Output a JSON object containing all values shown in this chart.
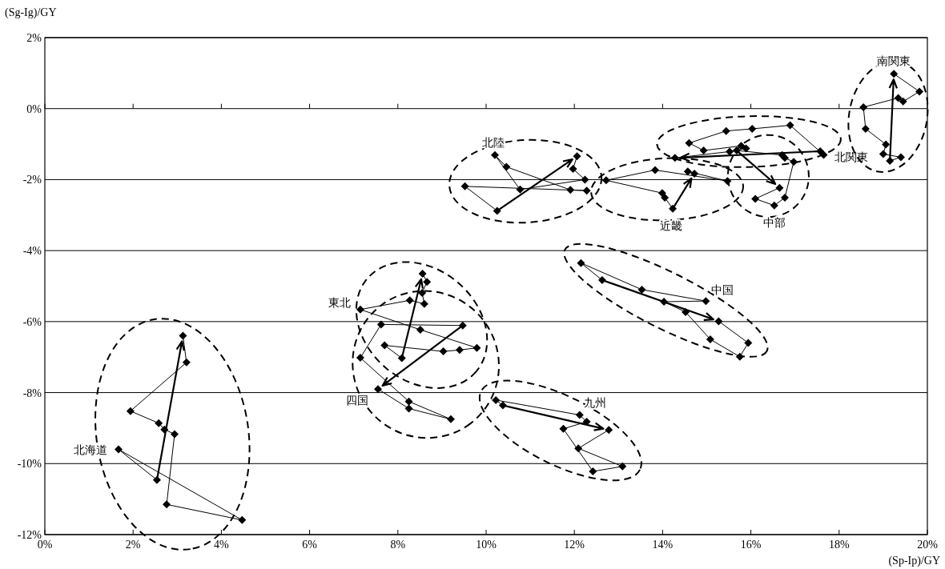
{
  "chart_data": {
    "type": "line",
    "xlabel": "(Sp-Ip)/GY",
    "ylabel": "(Sg-Ig)/GY",
    "xlim": [
      0,
      20
    ],
    "xticks": [
      {
        "value": 0,
        "label": "0%"
      },
      {
        "value": 2,
        "label": "2%"
      },
      {
        "value": 4,
        "label": "4%"
      },
      {
        "value": 6,
        "label": "6%"
      },
      {
        "value": 8,
        "label": "8%"
      },
      {
        "value": 10,
        "label": "10%"
      },
      {
        "value": 12,
        "label": "12%"
      },
      {
        "value": 14,
        "label": "14%"
      },
      {
        "value": 16,
        "label": "16%"
      },
      {
        "value": 18,
        "label": "18%"
      },
      {
        "value": 20,
        "label": "20%"
      }
    ],
    "ylim": [
      -12,
      2
    ],
    "yticks": [
      {
        "value": -12,
        "label": "-12%"
      },
      {
        "value": -10,
        "label": "-10%"
      },
      {
        "value": -8,
        "label": "-8%"
      },
      {
        "value": -6,
        "label": "-6%"
      },
      {
        "value": -4,
        "label": "-4%"
      },
      {
        "value": -2,
        "label": "-2%"
      },
      {
        "value": 0,
        "label": "0%"
      },
      {
        "value": 2,
        "label": "2%"
      }
    ],
    "grid": "y",
    "marker": "diamond",
    "line_style": "solid",
    "series": [
      {
        "name": "北海道",
        "color": "#000000",
        "x": [
          2.54,
          1.67,
          4.47,
          2.76,
          2.94,
          2.71,
          2.58,
          1.94,
          3.21,
          3.13
        ],
        "values": [
          -10.46,
          -9.6,
          -11.59,
          -11.15,
          -9.17,
          -9.04,
          -8.86,
          -8.52,
          -7.15,
          -6.4
        ]
      },
      {
        "name": "東北",
        "color": "#000000",
        "x": [
          8.09,
          7.7,
          9.03,
          9.4,
          9.79,
          8.51,
          7.15,
          8.27,
          8.6,
          8.55,
          8.66,
          8.56
        ],
        "values": [
          -7.03,
          -6.67,
          -6.84,
          -6.8,
          -6.74,
          -6.23,
          -5.66,
          -5.4,
          -5.5,
          -5.19,
          -4.88,
          -4.65
        ]
      },
      {
        "name": "北陸",
        "color": "#000000",
        "x": [
          10.25,
          9.52,
          12.28,
          11.91,
          10.46,
          10.2,
          10.77,
          12.24,
          11.97,
          12.06
        ],
        "values": [
          -2.88,
          -2.19,
          -2.31,
          -2.29,
          -1.64,
          -1.31,
          -2.28,
          -2.0,
          -1.7,
          -1.34
        ]
      },
      {
        "name": "北関東",
        "color": "#000000",
        "x": [
          17.57,
          17.65,
          16.89,
          16.03,
          15.44,
          14.6,
          14.93,
          15.78,
          15.89,
          15.52,
          14.28
        ],
        "values": [
          -1.2,
          -1.3,
          -0.47,
          -0.57,
          -0.63,
          -0.97,
          -1.18,
          -1.05,
          -1.12,
          -1.21,
          -1.39
        ]
      },
      {
        "name": "南関東",
        "color": "#000000",
        "x": [
          19.15,
          19.4,
          19.0,
          19.06,
          18.6,
          18.55,
          19.34,
          19.45,
          19.82,
          19.24
        ],
        "values": [
          -1.47,
          -1.37,
          -1.28,
          -1.01,
          -0.57,
          0.04,
          0.3,
          0.2,
          0.48,
          0.98
        ]
      },
      {
        "name": "中部",
        "color": "#000000",
        "x": [
          15.68,
          16.71,
          16.77,
          16.97,
          16.77,
          16.53,
          16.1,
          16.65
        ],
        "values": [
          -1.18,
          -1.31,
          -1.39,
          -1.5,
          -2.51,
          -2.73,
          -2.54,
          -2.23
        ]
      },
      {
        "name": "近畿",
        "color": "#000000",
        "x": [
          14.23,
          14.05,
          13.99,
          12.72,
          13.83,
          15.47,
          14.57,
          14.72
        ],
        "values": [
          -2.82,
          -2.51,
          -2.38,
          -2.02,
          -1.73,
          -2.04,
          -1.77,
          -1.83
        ]
      },
      {
        "name": "中国",
        "color": "#000000",
        "x": [
          12.63,
          12.15,
          13.53,
          14.98,
          14.03,
          14.52,
          15.08,
          15.75,
          15.94,
          15.27
        ],
        "values": [
          -4.83,
          -4.35,
          -5.1,
          -5.42,
          -5.44,
          -5.73,
          -6.5,
          -6.99,
          -6.6,
          -5.99
        ]
      },
      {
        "name": "四国",
        "color": "#000000",
        "x": [
          9.47,
          7.62,
          7.15,
          8.25,
          9.2,
          8.25,
          7.55
        ],
        "values": [
          -6.11,
          -6.08,
          -7.02,
          -8.25,
          -8.75,
          -8.45,
          -7.9
        ]
      },
      {
        "name": "九州",
        "color": "#000000",
        "x": [
          10.38,
          10.22,
          12.12,
          12.28,
          11.75,
          12.42,
          13.09,
          12.09,
          12.78
        ],
        "values": [
          -8.36,
          -8.21,
          -8.63,
          -8.82,
          -9.02,
          -10.22,
          -10.08,
          -9.57,
          -9.05
        ]
      }
    ]
  }
}
